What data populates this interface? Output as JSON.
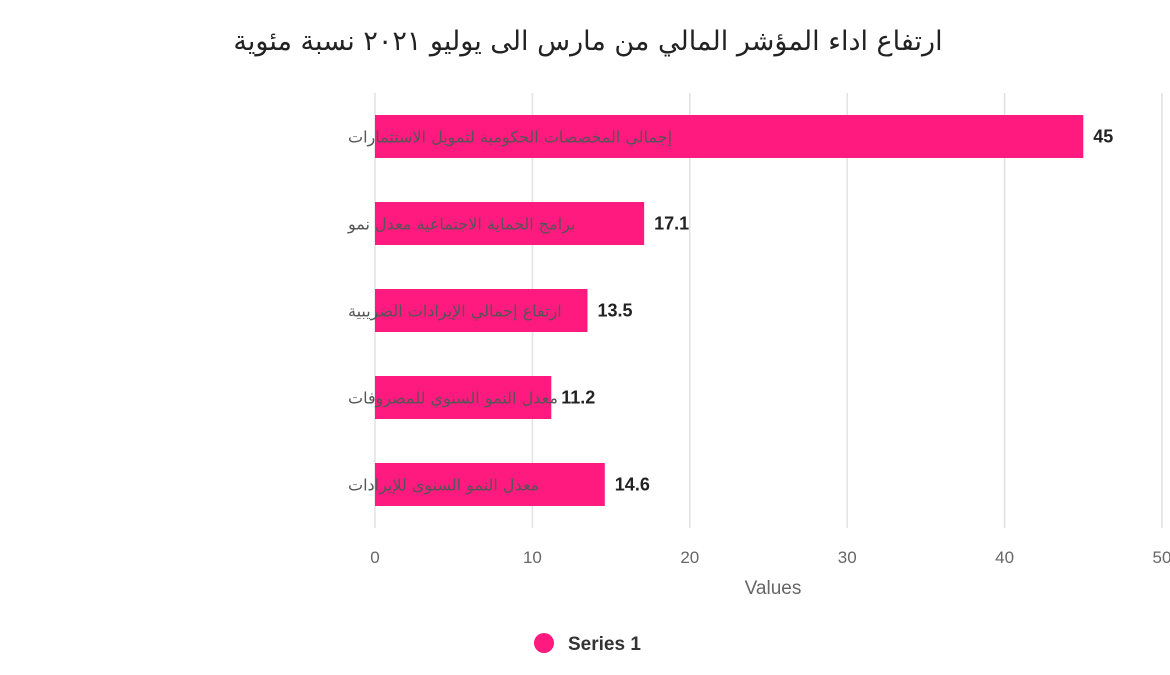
{
  "chart_data": {
    "type": "bar",
    "orientation": "horizontal",
    "title": "ارتفاع اداء المؤشر المالي من مارس الى يوليو ٢٠٢١ نسبة مئوية",
    "categories": [
      "إجمالي المخصصات الحكومية لتمويل الاستثمارات",
      "برامج الحماية الاجتماعية معدل نمو",
      "ارتفاع إجمالي الإيرادات الضريبية",
      "معدل النمو السنوي للمصروفات",
      "معدل النمو السنوى للإيرادات"
    ],
    "series": [
      {
        "name": "Series 1",
        "values": [
          45,
          17.1,
          13.5,
          11.2,
          14.6
        ],
        "color": "#ff1a80"
      }
    ],
    "data_labels": [
      "45",
      "17.1",
      "13.5",
      "11.2",
      "14.6"
    ],
    "xlabel": "Values",
    "ylabel": "",
    "xlim": [
      0,
      50
    ],
    "xticks": [
      0,
      10,
      20,
      30,
      40,
      50
    ],
    "grid": true,
    "legend_position": "bottom"
  }
}
